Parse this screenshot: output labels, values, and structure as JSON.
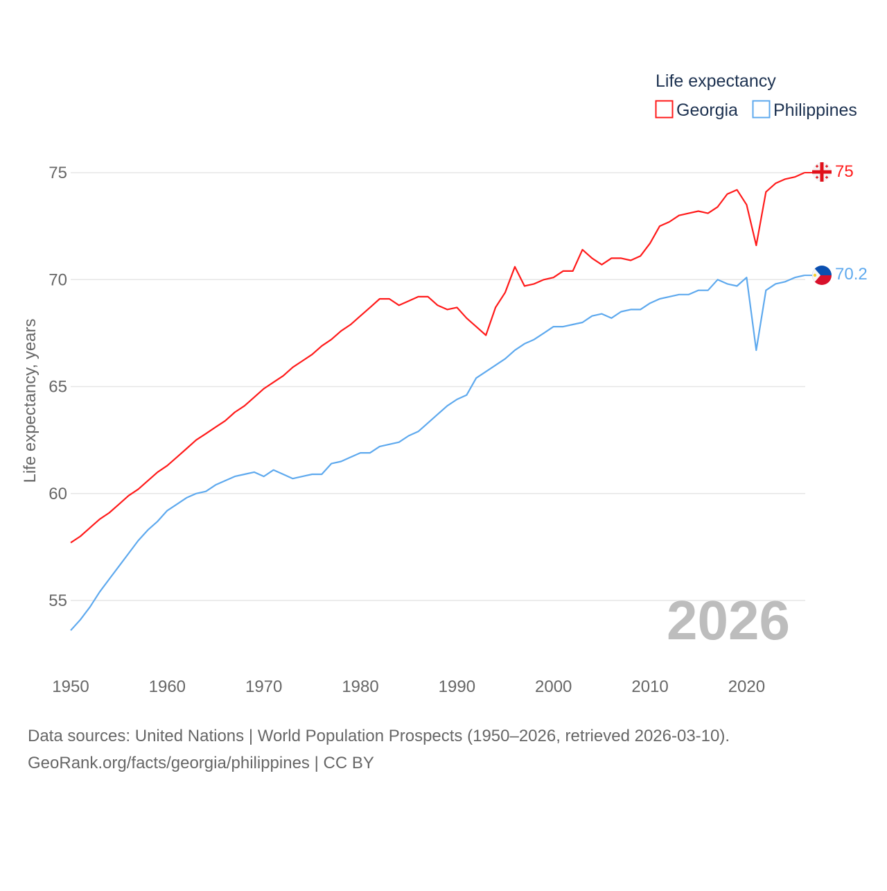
{
  "chart_data": {
    "type": "line",
    "title": "",
    "xlabel": "",
    "ylabel": "Life expectancy, years",
    "xlim": [
      1950,
      2026
    ],
    "ylim": [
      53,
      76
    ],
    "x_ticks": [
      1950,
      1960,
      1970,
      1980,
      1990,
      2000,
      2010,
      2020
    ],
    "y_ticks": [
      55,
      60,
      65,
      70,
      75
    ],
    "grid": "horizontal",
    "legend": {
      "title": "Life expectancy",
      "placement": "top-right"
    },
    "current_year": "2026",
    "x": [
      1950,
      1951,
      1952,
      1953,
      1954,
      1955,
      1956,
      1957,
      1958,
      1959,
      1960,
      1961,
      1962,
      1963,
      1964,
      1965,
      1966,
      1967,
      1968,
      1969,
      1970,
      1971,
      1972,
      1973,
      1974,
      1975,
      1976,
      1977,
      1978,
      1979,
      1980,
      1981,
      1982,
      1983,
      1984,
      1985,
      1986,
      1987,
      1988,
      1989,
      1990,
      1991,
      1992,
      1993,
      1994,
      1995,
      1996,
      1997,
      1998,
      1999,
      2000,
      2001,
      2002,
      2003,
      2004,
      2005,
      2006,
      2007,
      2008,
      2009,
      2010,
      2011,
      2012,
      2013,
      2014,
      2015,
      2016,
      2017,
      2018,
      2019,
      2020,
      2021,
      2022,
      2023,
      2024,
      2025,
      2026
    ],
    "series": [
      {
        "name": "Georgia",
        "color": "#ff1a1a",
        "end_label": "75",
        "values": [
          57.7,
          58.0,
          58.4,
          58.8,
          59.1,
          59.5,
          59.9,
          60.2,
          60.6,
          61.0,
          61.3,
          61.7,
          62.1,
          62.5,
          62.8,
          63.1,
          63.4,
          63.8,
          64.1,
          64.5,
          64.9,
          65.2,
          65.5,
          65.9,
          66.2,
          66.5,
          66.9,
          67.2,
          67.6,
          67.9,
          68.3,
          68.7,
          69.1,
          69.1,
          68.8,
          69.0,
          69.2,
          69.2,
          68.8,
          68.6,
          68.7,
          68.2,
          67.8,
          67.4,
          68.7,
          69.4,
          70.6,
          69.7,
          69.8,
          70.0,
          70.1,
          70.4,
          70.4,
          71.4,
          71.0,
          70.7,
          71.0,
          71.0,
          70.9,
          71.1,
          71.7,
          72.5,
          72.7,
          73.0,
          73.1,
          73.2,
          73.1,
          73.4,
          74.0,
          74.2,
          73.5,
          71.6,
          74.1,
          74.5,
          74.7,
          74.8,
          75.0
        ]
      },
      {
        "name": "Philippines",
        "color": "#5ea9ee",
        "end_label": "70.2",
        "values": [
          53.6,
          54.1,
          54.7,
          55.4,
          56.0,
          56.6,
          57.2,
          57.8,
          58.3,
          58.7,
          59.2,
          59.5,
          59.8,
          60.0,
          60.1,
          60.4,
          60.6,
          60.8,
          60.9,
          61.0,
          60.8,
          61.1,
          60.9,
          60.7,
          60.8,
          60.9,
          60.9,
          61.4,
          61.5,
          61.7,
          61.9,
          61.9,
          62.2,
          62.3,
          62.4,
          62.7,
          62.9,
          63.3,
          63.7,
          64.1,
          64.4,
          64.6,
          65.4,
          65.7,
          66.0,
          66.3,
          66.7,
          67.0,
          67.2,
          67.5,
          67.8,
          67.8,
          67.9,
          68.0,
          68.3,
          68.4,
          68.2,
          68.5,
          68.6,
          68.6,
          68.9,
          69.1,
          69.2,
          69.3,
          69.3,
          69.5,
          69.5,
          70.0,
          69.8,
          69.7,
          70.1,
          66.7,
          69.5,
          69.8,
          69.9,
          70.1,
          70.2
        ]
      }
    ]
  },
  "footer": {
    "line1": "Data sources: United Nations | World Population Prospects (1950–2026, retrieved 2026-03-10).",
    "line2": "GeoRank.org/facts/georgia/philippines | CC BY"
  }
}
